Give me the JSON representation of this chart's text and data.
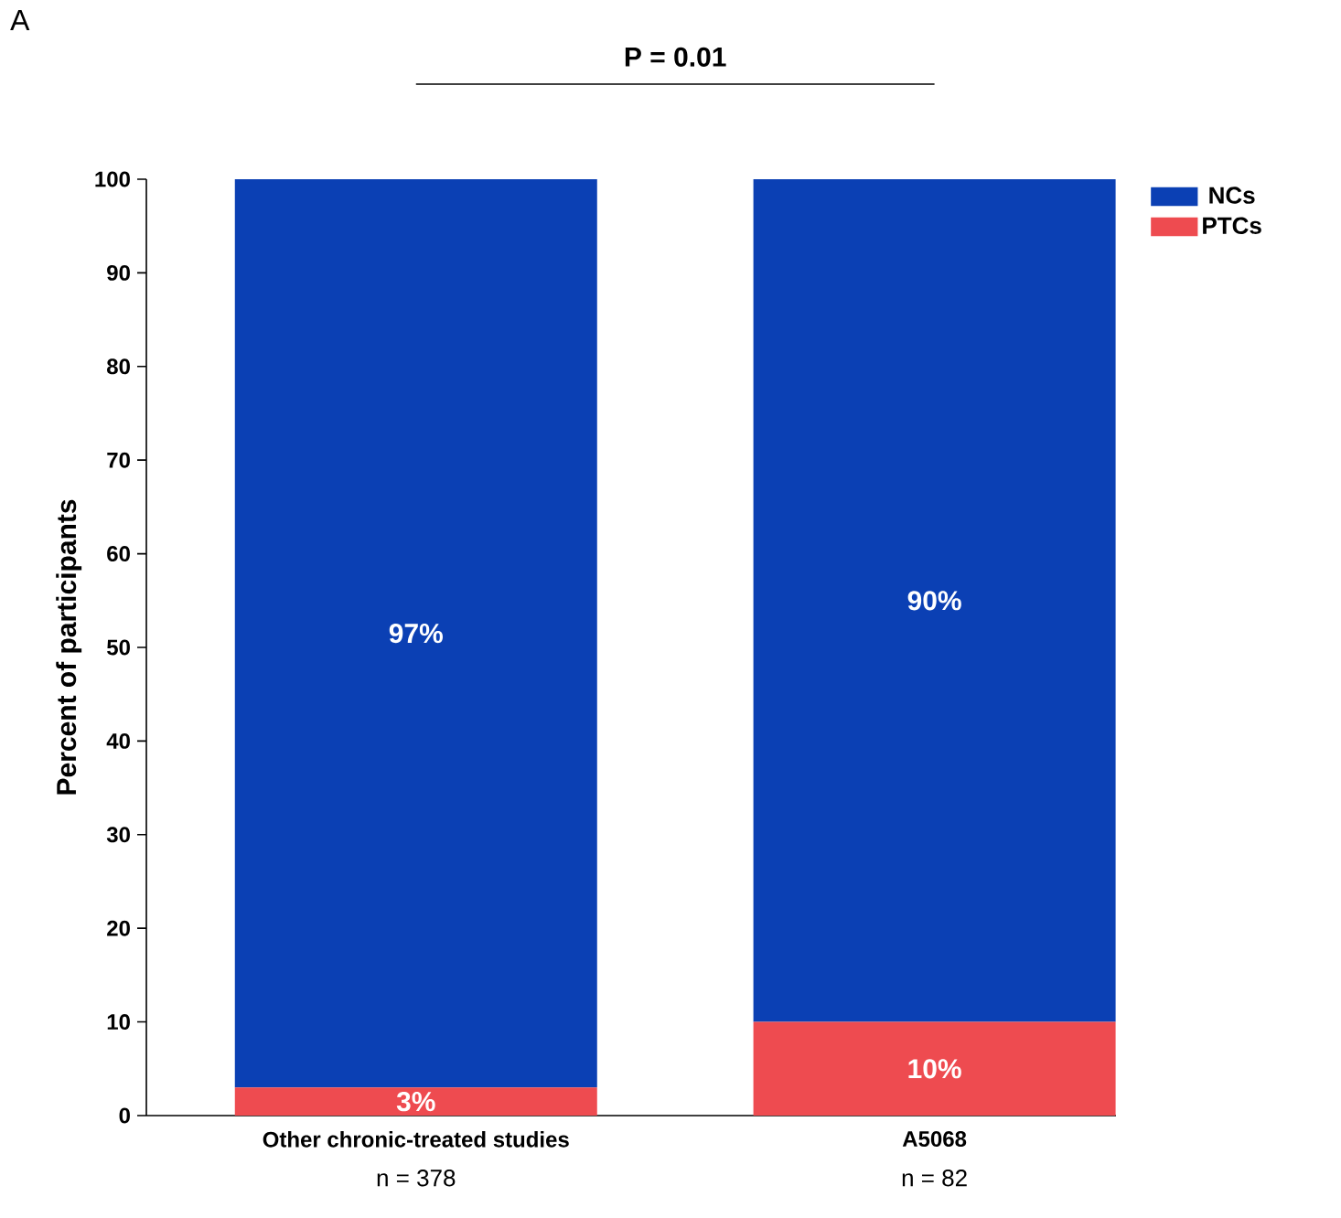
{
  "chart_data": {
    "type": "bar",
    "stacked": true,
    "categories": [
      "Other chronic-treated studies",
      "A5068"
    ],
    "series": [
      {
        "name": "PTCs",
        "color": "#ee4b50",
        "values": [
          3,
          10
        ],
        "value_labels": [
          "3%",
          "10%"
        ]
      },
      {
        "name": "NCs",
        "color": "#0b40b4",
        "values": [
          97,
          90
        ],
        "value_labels": [
          "97%",
          "90%"
        ]
      }
    ],
    "ylabel": "Percent of participants",
    "ylim": [
      0,
      100
    ],
    "yticks": [
      0,
      10,
      20,
      30,
      40,
      50,
      60,
      70,
      80,
      90,
      100
    ],
    "legend": "top right",
    "grid": false,
    "annotations": [
      "A",
      "P = 0.01",
      "n = 378",
      "n = 82"
    ]
  }
}
